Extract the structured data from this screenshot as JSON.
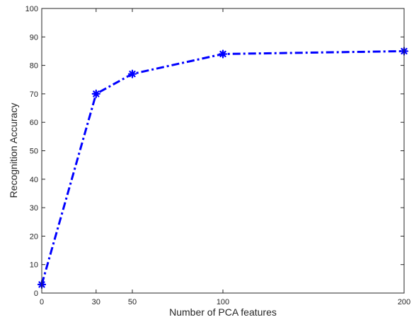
{
  "chart_data": {
    "type": "line",
    "title": "",
    "xlabel": "Number of PCA features",
    "ylabel": "Recognition Accuracy",
    "x": [
      0,
      30,
      50,
      100,
      200
    ],
    "xticks": [
      0,
      30,
      50,
      100,
      200
    ],
    "xtick_labels": [
      "0",
      "30",
      "50",
      "100",
      "200"
    ],
    "yticks": [
      0,
      10,
      20,
      30,
      40,
      50,
      60,
      70,
      80,
      90,
      100
    ],
    "ytick_labels": [
      "0",
      "10",
      "20",
      "30",
      "40",
      "50",
      "60",
      "70",
      "80",
      "90",
      "100"
    ],
    "xlim": [
      0,
      200
    ],
    "ylim": [
      0,
      100
    ],
    "grid": false,
    "legend": "none",
    "series": [
      {
        "values": [
          3,
          70,
          77,
          84,
          85
        ],
        "color": "#0000ff",
        "line_style": "dash-dot",
        "marker": "asterisk"
      }
    ]
  }
}
